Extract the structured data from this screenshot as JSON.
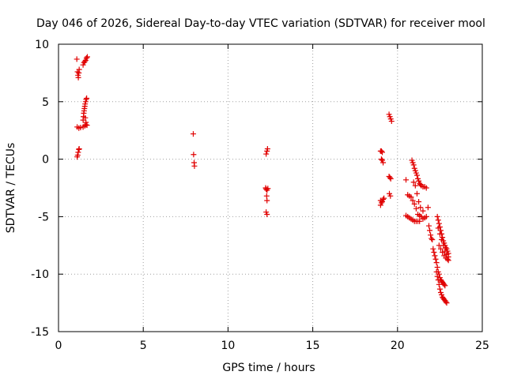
{
  "chart_data": {
    "type": "scatter",
    "title": "Day 046 of 2026, Sidereal Day-to-day VTEC variation (SDTVAR) for receiver mool",
    "xlabel": "GPS time / hours",
    "ylabel": "SDTVAR / TECUs",
    "xlim": [
      0,
      25
    ],
    "ylim": [
      -15,
      10
    ],
    "xticks": [
      0,
      5,
      10,
      15,
      20,
      25
    ],
    "yticks": [
      -15,
      -10,
      -5,
      0,
      5,
      10
    ],
    "grid": true,
    "marker": "+",
    "marker_color": "#e00000",
    "series": [
      {
        "name": "SDTVAR",
        "points": [
          [
            1.08,
            8.7
          ],
          [
            1.12,
            7.6
          ],
          [
            1.15,
            7.3
          ],
          [
            1.17,
            7.1
          ],
          [
            1.2,
            7.5
          ],
          [
            1.22,
            7.8
          ],
          [
            1.1,
            0.2
          ],
          [
            1.13,
            0.35
          ],
          [
            1.16,
            0.6
          ],
          [
            1.2,
            0.85
          ],
          [
            1.22,
            0.9
          ],
          [
            1.1,
            2.8
          ],
          [
            1.2,
            2.7
          ],
          [
            1.3,
            2.75
          ],
          [
            1.45,
            2.8
          ],
          [
            1.55,
            2.9
          ],
          [
            1.62,
            3.0
          ],
          [
            1.68,
            2.95
          ],
          [
            1.45,
            8.2
          ],
          [
            1.5,
            8.4
          ],
          [
            1.55,
            8.5
          ],
          [
            1.6,
            8.6
          ],
          [
            1.65,
            8.8
          ],
          [
            1.7,
            8.9
          ],
          [
            1.45,
            3.4
          ],
          [
            1.47,
            3.7
          ],
          [
            1.49,
            4.0
          ],
          [
            1.51,
            4.2
          ],
          [
            1.53,
            4.4
          ],
          [
            1.55,
            4.6
          ],
          [
            1.57,
            4.8
          ],
          [
            1.6,
            5.0
          ],
          [
            1.63,
            5.2
          ],
          [
            1.66,
            5.3
          ],
          [
            1.58,
            3.6
          ],
          [
            1.62,
            3.2
          ],
          [
            7.95,
            2.2
          ],
          [
            7.97,
            0.4
          ],
          [
            8.0,
            -0.3
          ],
          [
            8.02,
            -0.6
          ],
          [
            12.25,
            0.45
          ],
          [
            12.3,
            0.7
          ],
          [
            12.33,
            0.9
          ],
          [
            12.22,
            -2.5
          ],
          [
            12.25,
            -2.6
          ],
          [
            12.3,
            -2.7
          ],
          [
            12.35,
            -2.55
          ],
          [
            12.28,
            -3.2
          ],
          [
            12.3,
            -3.6
          ],
          [
            12.25,
            -4.6
          ],
          [
            12.3,
            -4.8
          ],
          [
            19.0,
            0.7
          ],
          [
            19.05,
            0.7
          ],
          [
            19.1,
            0.6
          ],
          [
            19.05,
            0.0
          ],
          [
            19.1,
            -0.1
          ],
          [
            19.15,
            -0.3
          ],
          [
            19.0,
            -3.6
          ],
          [
            19.05,
            -3.8
          ],
          [
            19.1,
            -3.7
          ],
          [
            19.15,
            -3.5
          ],
          [
            19.2,
            -3.4
          ],
          [
            19.0,
            -4.0
          ],
          [
            19.5,
            3.9
          ],
          [
            19.55,
            3.7
          ],
          [
            19.6,
            3.5
          ],
          [
            19.65,
            3.3
          ],
          [
            19.5,
            -1.5
          ],
          [
            19.55,
            -1.6
          ],
          [
            19.6,
            -1.7
          ],
          [
            19.52,
            -3.0
          ],
          [
            19.58,
            -3.2
          ],
          [
            20.5,
            -1.8
          ],
          [
            20.6,
            -3.1
          ],
          [
            20.7,
            -3.2
          ],
          [
            20.8,
            -3.3
          ],
          [
            20.9,
            -3.6
          ],
          [
            21.0,
            -3.9
          ],
          [
            21.1,
            -4.3
          ],
          [
            21.2,
            -4.8
          ],
          [
            21.3,
            -4.9
          ],
          [
            21.4,
            -5.0
          ],
          [
            21.5,
            -5.2
          ],
          [
            21.6,
            -5.1
          ],
          [
            21.7,
            -5.0
          ],
          [
            20.5,
            -4.9
          ],
          [
            20.6,
            -5.0
          ],
          [
            20.7,
            -5.1
          ],
          [
            20.8,
            -5.2
          ],
          [
            20.9,
            -5.3
          ],
          [
            21.0,
            -5.4
          ],
          [
            21.1,
            -5.4
          ],
          [
            21.2,
            -5.4
          ],
          [
            21.3,
            -5.4
          ],
          [
            20.85,
            -0.1
          ],
          [
            20.9,
            -0.3
          ],
          [
            20.95,
            -0.5
          ],
          [
            21.0,
            -0.8
          ],
          [
            21.05,
            -1.0
          ],
          [
            21.1,
            -1.2
          ],
          [
            21.15,
            -1.4
          ],
          [
            21.2,
            -1.7
          ],
          [
            21.25,
            -1.9
          ],
          [
            21.3,
            -2.1
          ],
          [
            21.35,
            -2.2
          ],
          [
            21.4,
            -2.3
          ],
          [
            21.5,
            -2.4
          ],
          [
            21.6,
            -2.4
          ],
          [
            21.7,
            -2.5
          ],
          [
            20.95,
            -2.0
          ],
          [
            21.05,
            -2.3
          ],
          [
            21.15,
            -3.0
          ],
          [
            21.25,
            -3.7
          ],
          [
            21.35,
            -4.2
          ],
          [
            21.5,
            -4.5
          ],
          [
            21.8,
            -4.2
          ],
          [
            21.85,
            -5.8
          ],
          [
            21.9,
            -6.2
          ],
          [
            21.95,
            -6.6
          ],
          [
            22.0,
            -6.9
          ],
          [
            22.05,
            -7.0
          ],
          [
            22.1,
            -7.8
          ],
          [
            22.15,
            -8.1
          ],
          [
            22.2,
            -8.4
          ],
          [
            22.25,
            -8.7
          ],
          [
            22.3,
            -9.0
          ],
          [
            22.35,
            -9.4
          ],
          [
            22.4,
            -9.8
          ],
          [
            22.45,
            -10.0
          ],
          [
            22.5,
            -10.3
          ],
          [
            22.55,
            -10.5
          ],
          [
            22.6,
            -10.6
          ],
          [
            22.65,
            -10.7
          ],
          [
            22.7,
            -10.8
          ],
          [
            22.75,
            -10.9
          ],
          [
            22.8,
            -11.0
          ],
          [
            22.3,
            -9.8
          ],
          [
            22.35,
            -10.2
          ],
          [
            22.4,
            -10.5
          ],
          [
            22.45,
            -10.9
          ],
          [
            22.5,
            -11.3
          ],
          [
            22.55,
            -11.6
          ],
          [
            22.6,
            -11.8
          ],
          [
            22.65,
            -12.0
          ],
          [
            22.7,
            -12.1
          ],
          [
            22.75,
            -12.2
          ],
          [
            22.8,
            -12.3
          ],
          [
            22.85,
            -12.4
          ],
          [
            22.9,
            -12.5
          ],
          [
            22.35,
            -5.0
          ],
          [
            22.4,
            -5.3
          ],
          [
            22.45,
            -5.6
          ],
          [
            22.5,
            -5.9
          ],
          [
            22.55,
            -6.2
          ],
          [
            22.6,
            -6.5
          ],
          [
            22.65,
            -6.8
          ],
          [
            22.7,
            -7.1
          ],
          [
            22.75,
            -7.3
          ],
          [
            22.8,
            -7.5
          ],
          [
            22.85,
            -7.7
          ],
          [
            22.9,
            -7.8
          ],
          [
            22.95,
            -8.0
          ],
          [
            23.0,
            -8.2
          ],
          [
            22.4,
            -6.0
          ],
          [
            22.5,
            -6.5
          ],
          [
            22.6,
            -7.0
          ],
          [
            22.7,
            -7.5
          ],
          [
            22.8,
            -8.0
          ],
          [
            22.9,
            -8.3
          ],
          [
            23.0,
            -8.5
          ],
          [
            22.45,
            -7.5
          ],
          [
            22.55,
            -7.8
          ],
          [
            22.65,
            -8.1
          ],
          [
            22.75,
            -8.4
          ],
          [
            22.85,
            -8.6
          ],
          [
            22.95,
            -8.7
          ],
          [
            23.0,
            -8.8
          ]
        ]
      }
    ]
  }
}
